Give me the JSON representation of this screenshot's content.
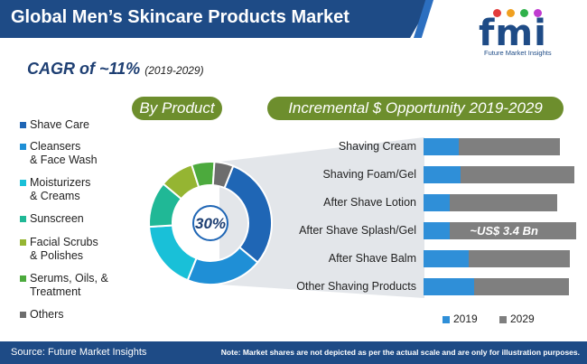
{
  "header": {
    "title": "Global Men’s Skincare Products Market",
    "logo_text": "fmi",
    "logo_subtitle": "Future Market Insights"
  },
  "cagr": {
    "label": "CAGR of ~11%",
    "years": "(2019-2029)"
  },
  "chart_data": [
    {
      "type": "pie",
      "title": "By Product",
      "center_label": "30%",
      "donut": true,
      "categories": [
        "Shave Care",
        "Cleansers\n& Face Wash",
        "Moisturizers\n& Creams",
        "Sunscreen",
        "Facial Scrubs\n& Polishes",
        "Serums, Oils, &\nTreatment",
        "Others"
      ],
      "values": [
        30,
        20,
        18,
        12,
        9,
        6,
        5
      ],
      "colors": [
        "#1f66b5",
        "#1f8fd6",
        "#19c0d8",
        "#20b896",
        "#95b532",
        "#4caa3d",
        "#6d6d6d"
      ],
      "legend_placement": "left"
    },
    {
      "type": "bar",
      "orientation": "horizontal",
      "stacked": true,
      "title": "Incremental $ Opportunity 2019-2029",
      "categories": [
        "Shaving Cream",
        "Shaving Foam/Gel",
        "After Shave Lotion",
        "After Shave Splash/Gel",
        "After Shave Balm",
        "Other Shaving Products"
      ],
      "series": [
        {
          "name": "2019",
          "color": "#2f8fd8",
          "values": [
            0.55,
            0.58,
            0.42,
            0.42,
            0.72,
            0.8
          ]
        },
        {
          "name": "2029",
          "color": "#7f7f7f",
          "values": [
            1.6,
            1.8,
            1.7,
            2.0,
            1.6,
            1.5
          ]
        }
      ],
      "annotation": {
        "category": "After Shave Splash/Gel",
        "text": "~US$ 3.4 Bn"
      },
      "legend_placement": "bottom"
    }
  ],
  "footer": {
    "source": "Source: Future Market Insights",
    "note": "Note: Market shares are not depicted as per the actual scale and are only for illustration purposes."
  }
}
